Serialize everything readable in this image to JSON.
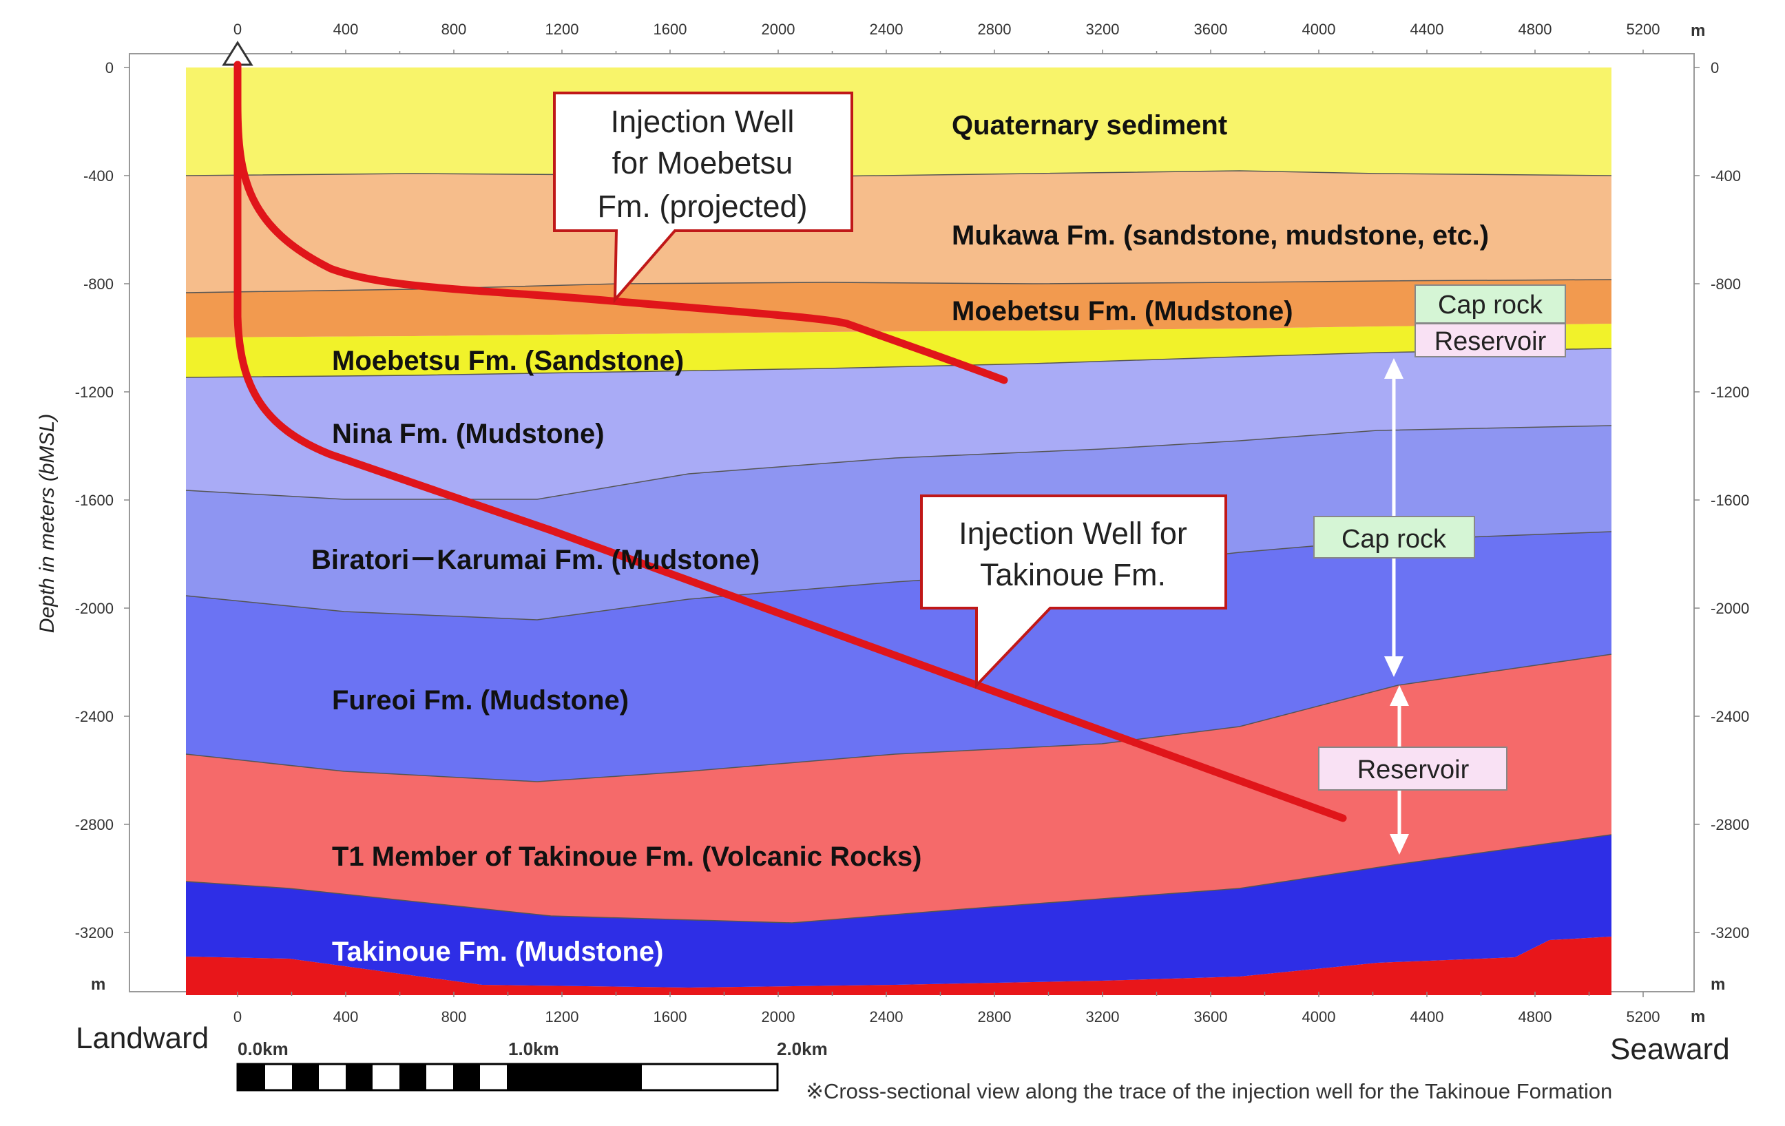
{
  "axes": {
    "y_label": "Depth in meters (bMSL)",
    "x_unit": "m",
    "y_unit": "m",
    "x_ticks": [
      "0",
      "400",
      "800",
      "1200",
      "1600",
      "2000",
      "2400",
      "2800",
      "3200",
      "3600",
      "4000",
      "4400",
      "4800",
      "5200"
    ],
    "y_ticks": [
      "0",
      "-400",
      "-800",
      "-1200",
      "-1600",
      "-2000",
      "-2400",
      "-2800",
      "-3200"
    ]
  },
  "layers": [
    {
      "key": "quaternary",
      "label": "Quaternary sediment",
      "color": "#f8f46a",
      "text_color": "#111111"
    },
    {
      "key": "mukawa",
      "label": "Mukawa Fm.  (sandstone, mudstone, etc.)",
      "color": "#f6bd8b",
      "text_color": "#111111"
    },
    {
      "key": "moebetsu_mud",
      "label": "Moebetsu Fm.  (Mudstone)",
      "color": "#f29a4f",
      "text_color": "#111111"
    },
    {
      "key": "moebetsu_sand",
      "label": "Moebetsu  Fm.  (Sandstone)",
      "color": "#f1f22a",
      "text_color": "#111111"
    },
    {
      "key": "nina",
      "label": "Nina Fm.  (Mudstone)",
      "color": "#a9abf6",
      "text_color": "#111111"
    },
    {
      "key": "biratori",
      "label": "Biratori－Karumai Fm.  (Mudstone)",
      "color": "#8e95f2",
      "text_color": "#111111"
    },
    {
      "key": "fureoi",
      "label": "Fureoi Fm.  (Mudstone)",
      "color": "#6b73f3",
      "text_color": "#111111"
    },
    {
      "key": "t1",
      "label": "T1 Member of Takinoue Fm. (Volcanic Rocks)",
      "color": "#f56a6a",
      "text_color": "#111111"
    },
    {
      "key": "takinoue",
      "label": "Takinoue Fm.  (Mudstone)",
      "color": "#2e2ee6",
      "text_color": "#ffffff"
    },
    {
      "key": "basement",
      "label": "",
      "color": "#e8161a",
      "text_color": "#111111"
    }
  ],
  "wells": {
    "line_color": "#e0151a",
    "moebetsu": {
      "lines": [
        "Injection  Well",
        "for Moebetsu",
        "Fm. (projected)"
      ]
    },
    "takinoue": {
      "lines": [
        "Injection  Well for",
        "Takinoue Fm."
      ]
    }
  },
  "badges": {
    "cap_rock_upper": "Cap rock",
    "reservoir_upper": "Reservoir",
    "cap_rock_lower": "Cap rock",
    "reservoir_lower": "Reservoir",
    "cap_color": "#d5f5d5",
    "reservoir_color": "#f9e1f4"
  },
  "footer": {
    "landward": "Landward",
    "seaward": "Seaward",
    "scale_labels": [
      "0.0km",
      "1.0km",
      "2.0km"
    ],
    "note": "※Cross-sectional view along the trace of  the injection well for the Takinoue Formation"
  }
}
